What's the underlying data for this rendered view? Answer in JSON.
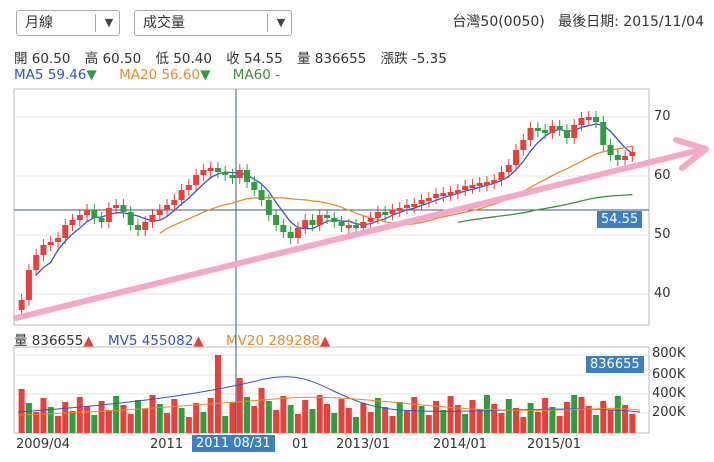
{
  "period_select": {
    "value": "月線"
  },
  "indicator_select": {
    "value": "成交量"
  },
  "header": {
    "symbol": "台灣50(0050)",
    "last_date_label": "最後日期: 2015/11/04"
  },
  "quote": {
    "open": "開 60.50",
    "high": "高 60.50",
    "low": "低 50.40",
    "close": "收 54.55",
    "volume": "量 836655",
    "change": "漲跌 -5.35"
  },
  "ma": {
    "ma5": "MA5 59.46",
    "ma20": "MA20 56.60",
    "ma60": "MA60 -"
  },
  "vol_legend": {
    "vol": "量 836655",
    "mv5": "MV5 455082",
    "mv20": "MV20 289288"
  },
  "cursor": {
    "price_tag": "54.55",
    "volume_tag": "836655",
    "date_tag": "2011 08/31"
  },
  "price_axis": [
    "70",
    "60",
    "50",
    "40"
  ],
  "volume_axis": [
    "800K",
    "600K",
    "400K",
    "200K"
  ],
  "x_axis": [
    "2009/04",
    "2011",
    "01",
    "2013/01",
    "2014/01",
    "2015/01"
  ],
  "colors": {
    "up": "#e8413c",
    "down": "#2e9e3f",
    "ma5": "#3355cc",
    "ma20": "#f08a24",
    "ma60": "#3f8f3f",
    "trend": "#f6a8c8",
    "tag": "#3d7fc1"
  }
}
